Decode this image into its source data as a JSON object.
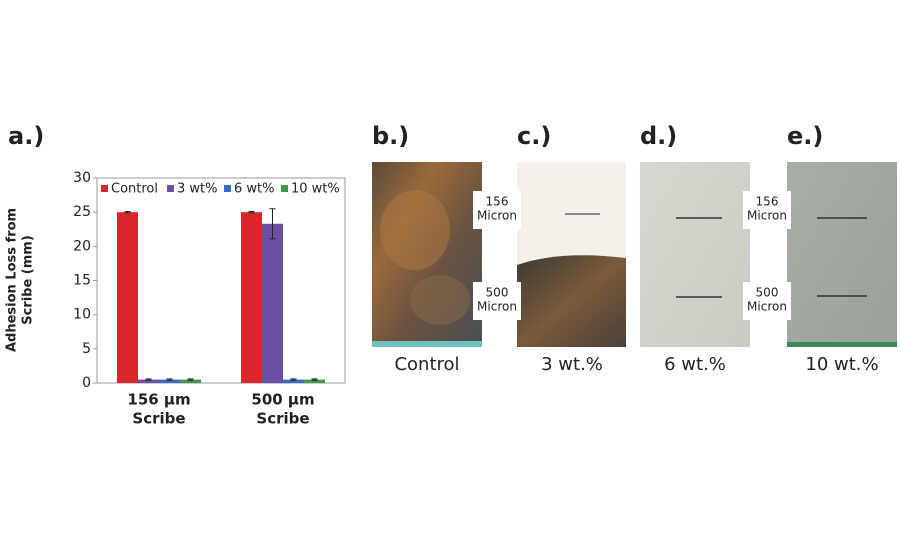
{
  "chart_data": {
    "type": "bar",
    "panel_label": "a.)",
    "y_label": [
      "Adhesion Loss from",
      "Scribe (mm)"
    ],
    "categories": [
      [
        "156 µm",
        "Scribe"
      ],
      [
        "500 µm",
        "Scribe"
      ]
    ],
    "series": [
      {
        "name": "Control",
        "color": "#d8262b",
        "values": [
          25,
          25
        ],
        "errors": [
          0.1,
          0.1
        ]
      },
      {
        "name": "3 wt%",
        "color": "#6b4fa5",
        "values": [
          0.5,
          23.3
        ],
        "errors": [
          0.1,
          2.2
        ]
      },
      {
        "name": "6 wt%",
        "color": "#3a6cc0",
        "values": [
          0.5,
          0.5
        ],
        "errors": [
          0.1,
          0.1
        ]
      },
      {
        "name": "10 wt%",
        "color": "#3d9b4b",
        "values": [
          0.5,
          0.5
        ],
        "errors": [
          0.1,
          0.1
        ]
      }
    ],
    "ylim": [
      0,
      30
    ],
    "yticks": [
      0,
      5,
      10,
      15,
      20,
      25,
      30
    ],
    "grid": false,
    "legend": "top"
  },
  "panels": [
    {
      "label": "b.)",
      "caption": "Control",
      "annotations": []
    },
    {
      "label": "c.)",
      "caption": "3 wt.%",
      "annotations": [
        [
          "156",
          "Micron"
        ],
        [
          "500",
          "Micron"
        ]
      ]
    },
    {
      "label": "d.)",
      "caption": "6 wt.%",
      "annotations": []
    },
    {
      "label": "e.)",
      "caption": "10 wt.%",
      "annotations": [
        [
          "156",
          "Micron"
        ],
        [
          "500",
          "Micron"
        ]
      ]
    }
  ]
}
